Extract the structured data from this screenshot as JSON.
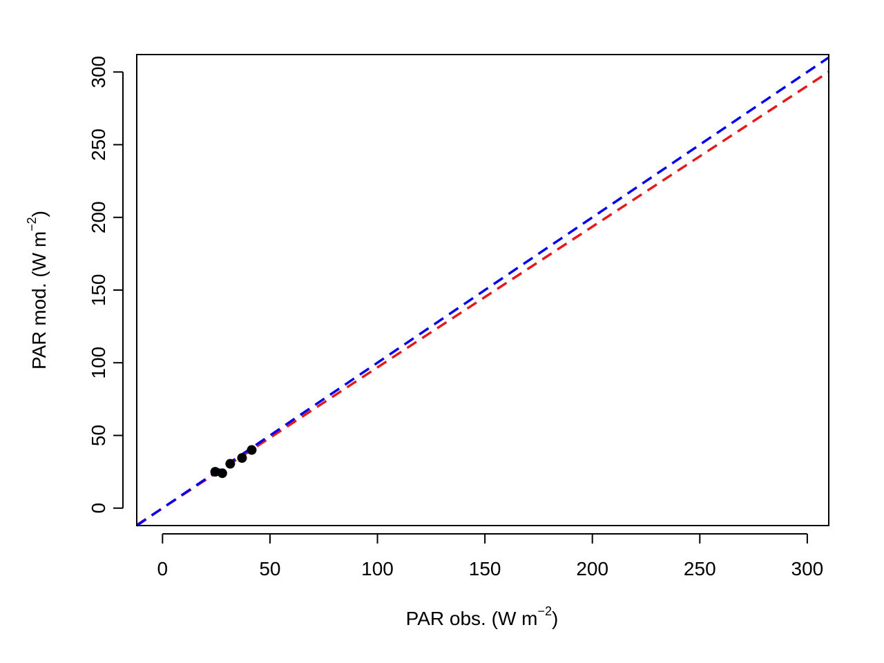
{
  "chart_data": {
    "type": "scatter",
    "title": "",
    "xlabel": {
      "base": "PAR obs. (W m",
      "sup": "−2",
      "close": ")"
    },
    "ylabel": {
      "base": "PAR mod. (W m",
      "sup": "−2",
      "close": ")"
    },
    "xlim": [
      -12,
      310
    ],
    "ylim": [
      -12,
      312
    ],
    "x_ticks": [
      0,
      50,
      100,
      150,
      200,
      250,
      300
    ],
    "y_ticks": [
      0,
      50,
      100,
      150,
      200,
      250,
      300
    ],
    "grid": false,
    "legend": "none",
    "points": [
      {
        "x": 24.5,
        "y": 25.0
      },
      {
        "x": 27.8,
        "y": 24.0
      },
      {
        "x": 31.5,
        "y": 30.5
      },
      {
        "x": 37.0,
        "y": 34.5
      },
      {
        "x": 41.5,
        "y": 40.0
      }
    ],
    "point_color": "#000000",
    "lines": [
      {
        "color": "#e31a1c",
        "dash": true,
        "slope": 0.968,
        "intercept": 0
      },
      {
        "color": "#0000ee",
        "dash": true,
        "slope": 1.0,
        "intercept": 0
      }
    ]
  }
}
